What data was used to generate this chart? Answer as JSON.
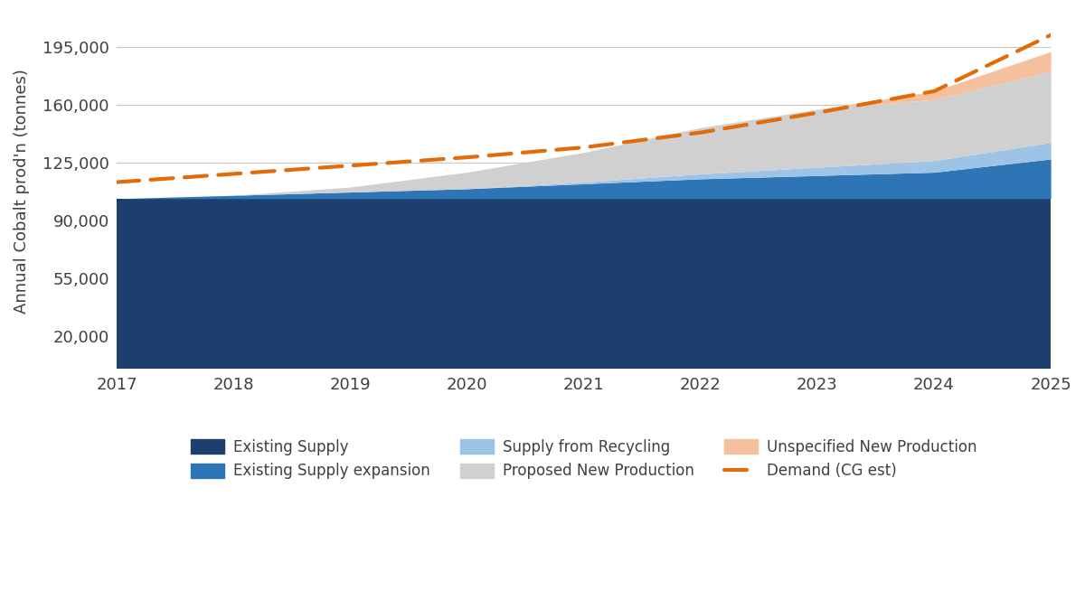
{
  "years": [
    2017,
    2018,
    2019,
    2020,
    2021,
    2022,
    2023,
    2024,
    2025
  ],
  "existing_supply": [
    103000,
    103000,
    103000,
    103000,
    103000,
    103000,
    103000,
    103000,
    103000
  ],
  "existing_supply_exp": [
    0,
    2000,
    4000,
    6000,
    9000,
    12000,
    14000,
    16000,
    24000
  ],
  "supply_recycling": [
    0,
    0,
    0,
    0,
    1000,
    3000,
    5000,
    7000,
    10000
  ],
  "proposed_new": [
    0,
    0,
    3000,
    10000,
    18000,
    28000,
    35000,
    37000,
    43000
  ],
  "unspecified_new": [
    0,
    0,
    0,
    0,
    0,
    0,
    0,
    5000,
    12000
  ],
  "demand": [
    113000,
    118000,
    123000,
    128000,
    134000,
    143000,
    155000,
    168000,
    202000
  ],
  "color_existing_supply": "#1d3f6e",
  "color_existing_exp": "#2e75b6",
  "color_recycling": "#9dc3e6",
  "color_proposed": "#d0d0d0",
  "color_unspecified": "#f4c09e",
  "color_demand": "#e36c09",
  "ylabel": "Annual Cobalt prod'n (tonnes)",
  "ylim": [
    0,
    215000
  ],
  "yticks": [
    20000,
    55000,
    90000,
    125000,
    160000,
    195000
  ],
  "background_color": "#ffffff",
  "grid_color": "#c8c8c8"
}
